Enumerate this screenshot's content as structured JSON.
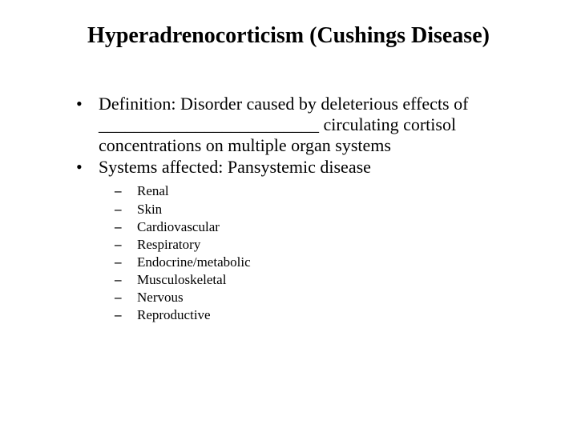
{
  "title": "Hyperadrenocorticism (Cushings Disease)",
  "bullets": [
    {
      "marker": "•",
      "text": "Definition:   Disorder caused by deleterious effects of _________________________  circulating cortisol concentrations on multiple organ systems"
    },
    {
      "marker": "•",
      "text": "Systems affected: Pansystemic disease"
    }
  ],
  "subBullets": [
    {
      "marker": "–",
      "text": "Renal"
    },
    {
      "marker": "–",
      "text": "Skin"
    },
    {
      "marker": "–",
      "text": "Cardiovascular"
    },
    {
      "marker": "–",
      "text": "Respiratory"
    },
    {
      "marker": "–",
      "text": "Endocrine/metabolic"
    },
    {
      "marker": "–",
      "text": "Musculoskeletal"
    },
    {
      "marker": "–",
      "text": "Nervous"
    },
    {
      "marker": "–",
      "text": "Reproductive"
    }
  ],
  "colors": {
    "background": "#ffffff",
    "text": "#000000"
  }
}
